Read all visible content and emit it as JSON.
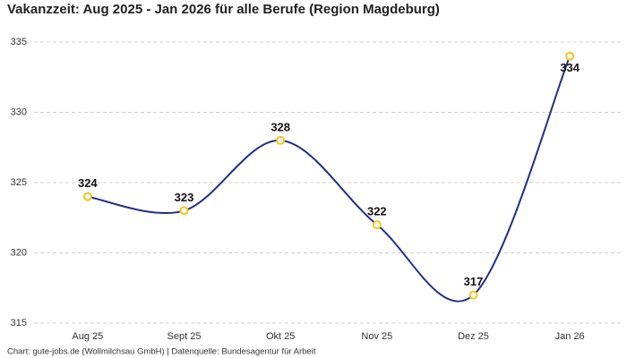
{
  "chart_data": {
    "type": "line",
    "title": "Vakanzzeit: Aug 2025 - Jan 2026 für alle Berufe (Region Magdeburg)",
    "categories": [
      "Aug 25",
      "Sept 25",
      "Okt 25",
      "Nov 25",
      "Dez 25",
      "Jan 26"
    ],
    "values": [
      324,
      323,
      328,
      322,
      317,
      334
    ],
    "color": "#1f2f86",
    "marker_color": "#f5c518",
    "ylim": [
      315,
      335
    ],
    "yticks": [
      315,
      320,
      325,
      330,
      335
    ],
    "grid": true,
    "source": "Chart: gute-jobs.de (Wollmilchsau GmbH) | Datenquelle: Bundesagentur für Arbeit"
  }
}
